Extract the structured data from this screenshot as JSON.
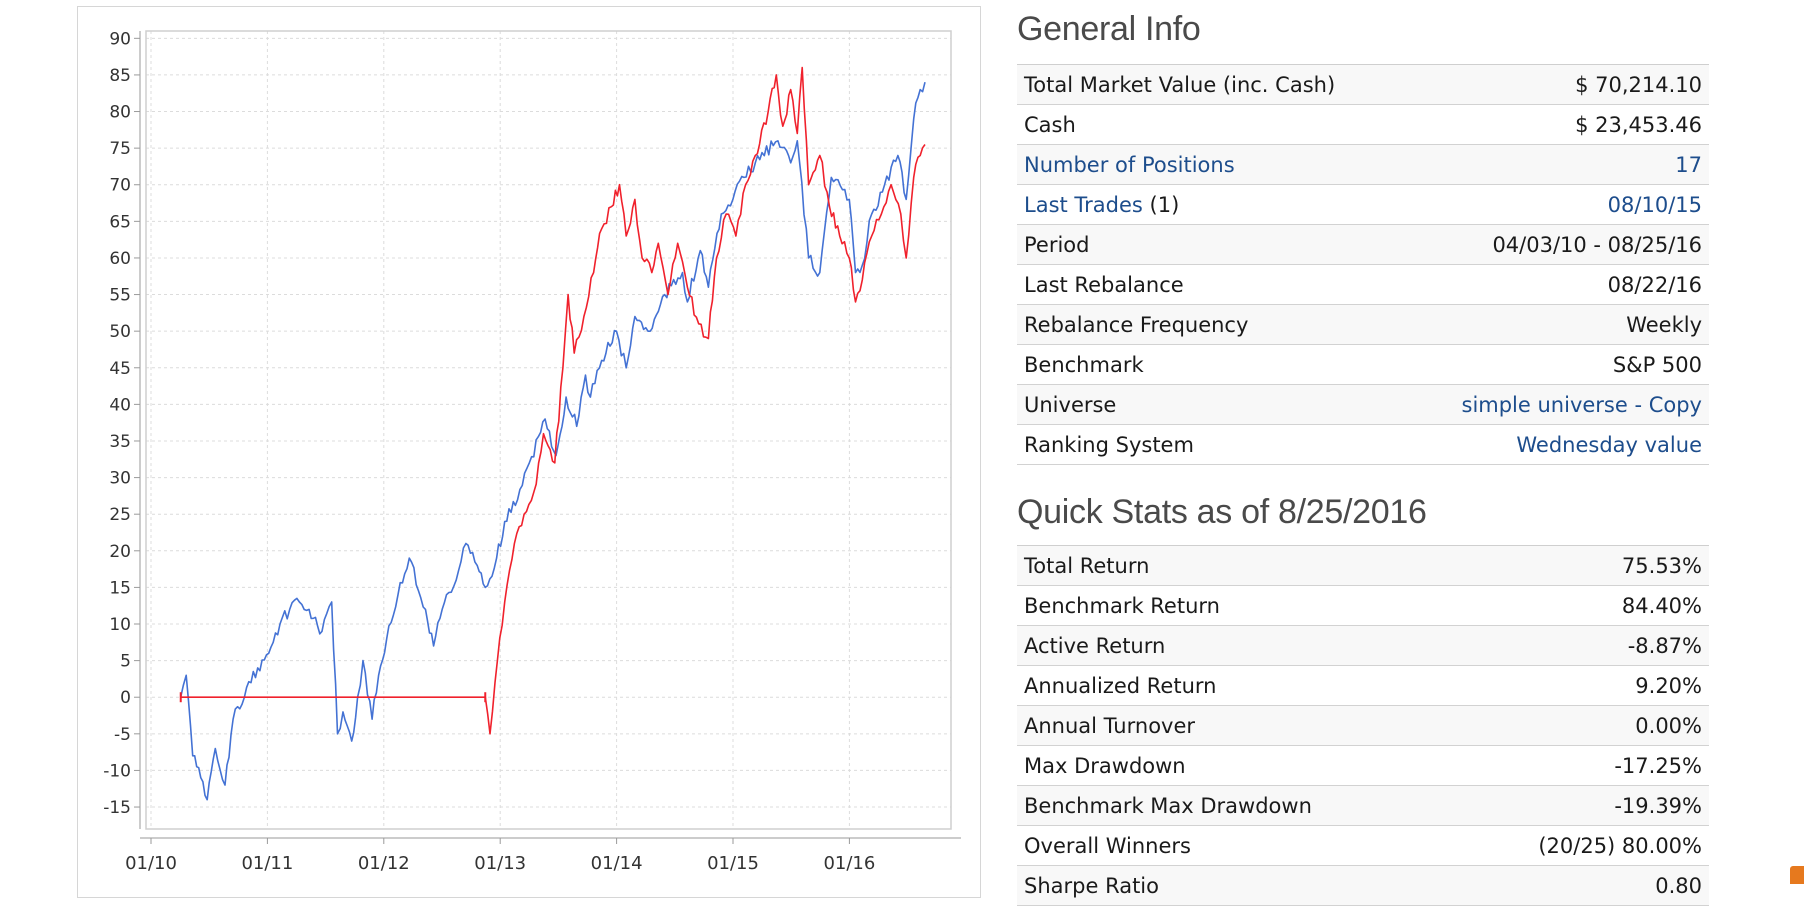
{
  "chart_data": {
    "type": "line",
    "x_ticks": [
      "01/10",
      "01/11",
      "01/12",
      "01/13",
      "01/14",
      "01/15",
      "01/16"
    ],
    "y_ticks": [
      90,
      85,
      80,
      75,
      70,
      65,
      60,
      55,
      50,
      45,
      40,
      35,
      30,
      25,
      20,
      15,
      10,
      5,
      0,
      -5,
      -10,
      -15
    ],
    "ylim": [
      -18,
      91
    ],
    "grid": true,
    "colors": {
      "benchmark": "#4472d4",
      "portfolio": "#f0212c"
    },
    "series": [
      {
        "color": "#4472d4",
        "points": [
          [
            "2010-04-03",
            0
          ],
          [
            "2010-04-20",
            3
          ],
          [
            "2010-05-10",
            -8
          ],
          [
            "2010-06-05",
            -11
          ],
          [
            "2010-06-25",
            -14
          ],
          [
            "2010-07-20",
            -7
          ],
          [
            "2010-08-20",
            -12
          ],
          [
            "2010-09-15",
            -3
          ],
          [
            "2010-10-20",
            0
          ],
          [
            "2010-12-01",
            4
          ],
          [
            "2011-01-05",
            6
          ],
          [
            "2011-02-10",
            10
          ],
          [
            "2011-03-10",
            12
          ],
          [
            "2011-04-10",
            13
          ],
          [
            "2011-05-10",
            12
          ],
          [
            "2011-06-20",
            9
          ],
          [
            "2011-07-20",
            13
          ],
          [
            "2011-08-08",
            -5
          ],
          [
            "2011-08-25",
            -2
          ],
          [
            "2011-09-22",
            -6
          ],
          [
            "2011-10-10",
            0
          ],
          [
            "2011-10-27",
            5
          ],
          [
            "2011-11-25",
            -3
          ],
          [
            "2011-12-15",
            3
          ],
          [
            "2012-01-10",
            8
          ],
          [
            "2012-02-15",
            14
          ],
          [
            "2012-03-20",
            19
          ],
          [
            "2012-05-10",
            12
          ],
          [
            "2012-06-05",
            7
          ],
          [
            "2012-07-15",
            14
          ],
          [
            "2012-08-15",
            16
          ],
          [
            "2012-09-15",
            21
          ],
          [
            "2012-10-20",
            18
          ],
          [
            "2012-11-15",
            15
          ],
          [
            "2012-12-20",
            19
          ],
          [
            "2013-01-15",
            24
          ],
          [
            "2013-02-25",
            27
          ],
          [
            "2013-04-01",
            32
          ],
          [
            "2013-05-20",
            38
          ],
          [
            "2013-06-24",
            33
          ],
          [
            "2013-07-25",
            41
          ],
          [
            "2013-08-28",
            37
          ],
          [
            "2013-09-25",
            44
          ],
          [
            "2013-10-10",
            41
          ],
          [
            "2013-11-15",
            46
          ],
          [
            "2013-12-31",
            50
          ],
          [
            "2014-01-31",
            45
          ],
          [
            "2014-02-28",
            52
          ],
          [
            "2014-04-15",
            50
          ],
          [
            "2014-05-30",
            55
          ],
          [
            "2014-07-25",
            58
          ],
          [
            "2014-08-10",
            54
          ],
          [
            "2014-09-20",
            61
          ],
          [
            "2014-10-15",
            56
          ],
          [
            "2014-11-25",
            66
          ],
          [
            "2014-12-31",
            68
          ],
          [
            "2015-02-05",
            71
          ],
          [
            "2015-03-10",
            73
          ],
          [
            "2015-05-20",
            76
          ],
          [
            "2015-06-30",
            73
          ],
          [
            "2015-07-20",
            76
          ],
          [
            "2015-08-25",
            60
          ],
          [
            "2015-09-30",
            58
          ],
          [
            "2015-11-05",
            71
          ],
          [
            "2015-12-31",
            68
          ],
          [
            "2016-01-20",
            58
          ],
          [
            "2016-02-11",
            59
          ],
          [
            "2016-03-10",
            66
          ],
          [
            "2016-04-20",
            70
          ],
          [
            "2016-06-01",
            74
          ],
          [
            "2016-06-27",
            68
          ],
          [
            "2016-07-20",
            79
          ],
          [
            "2016-08-10",
            83
          ],
          [
            "2016-08-25",
            84
          ]
        ]
      },
      {
        "color": "#f0212c",
        "points": [
          [
            "2010-04-03",
            0
          ],
          [
            "2012-11-15",
            0
          ],
          [
            "2012-11-30",
            -5
          ],
          [
            "2012-12-15",
            2
          ],
          [
            "2013-01-15",
            13
          ],
          [
            "2013-02-15",
            21
          ],
          [
            "2013-03-15",
            25
          ],
          [
            "2013-04-15",
            28
          ],
          [
            "2013-05-15",
            36
          ],
          [
            "2013-06-20",
            32
          ],
          [
            "2013-07-15",
            45
          ],
          [
            "2013-08-01",
            55
          ],
          [
            "2013-08-20",
            47
          ],
          [
            "2013-09-20",
            52
          ],
          [
            "2013-10-20",
            58
          ],
          [
            "2013-11-15",
            64
          ],
          [
            "2013-12-15",
            67
          ],
          [
            "2014-01-10",
            70
          ],
          [
            "2014-01-31",
            63
          ],
          [
            "2014-02-28",
            68
          ],
          [
            "2014-03-20",
            60
          ],
          [
            "2014-04-20",
            58
          ],
          [
            "2014-05-10",
            62
          ],
          [
            "2014-06-10",
            55
          ],
          [
            "2014-07-10",
            62
          ],
          [
            "2014-08-10",
            56
          ],
          [
            "2014-09-15",
            51
          ],
          [
            "2014-10-15",
            49
          ],
          [
            "2014-11-10",
            60
          ],
          [
            "2014-12-10",
            66
          ],
          [
            "2015-01-10",
            63
          ],
          [
            "2015-02-10",
            70
          ],
          [
            "2015-03-10",
            74
          ],
          [
            "2015-04-20",
            80
          ],
          [
            "2015-05-15",
            85
          ],
          [
            "2015-06-05",
            78
          ],
          [
            "2015-06-30",
            83
          ],
          [
            "2015-07-20",
            77
          ],
          [
            "2015-08-05",
            86
          ],
          [
            "2015-08-25",
            70
          ],
          [
            "2015-09-30",
            74
          ],
          [
            "2015-10-30",
            67
          ],
          [
            "2015-12-01",
            63
          ],
          [
            "2015-12-31",
            60
          ],
          [
            "2016-01-20",
            54
          ],
          [
            "2016-02-11",
            57
          ],
          [
            "2016-03-10",
            63
          ],
          [
            "2016-04-10",
            66
          ],
          [
            "2016-05-10",
            70
          ],
          [
            "2016-06-10",
            66
          ],
          [
            "2016-06-27",
            60
          ],
          [
            "2016-07-20",
            71
          ],
          [
            "2016-08-10",
            74
          ],
          [
            "2016-08-25",
            75.5
          ]
        ]
      }
    ]
  },
  "general_info": {
    "title": "General Info",
    "rows": [
      {
        "label": "Total Market Value (inc. Cash)",
        "value": "$ 70,214.10"
      },
      {
        "label": "Cash",
        "value": "$ 23,453.46"
      },
      {
        "label": "Number of Positions",
        "value": "17"
      },
      {
        "label": "Last Trades",
        "label_suffix": " (1)",
        "value": "08/10/15"
      },
      {
        "label": "Period",
        "value": "04/03/10 - 08/25/16"
      },
      {
        "label": "Last Rebalance",
        "value": "08/22/16"
      },
      {
        "label": "Rebalance Frequency",
        "value": "Weekly"
      },
      {
        "label": "Benchmark",
        "value": "S&P 500"
      },
      {
        "label": "Universe",
        "value": "simple universe - Copy"
      },
      {
        "label": "Ranking System",
        "value": "Wednesday value"
      }
    ]
  },
  "quick_stats": {
    "title": "Quick Stats as of 8/25/2016",
    "rows": [
      {
        "label": "Total Return",
        "value": "75.53%"
      },
      {
        "label": "Benchmark Return",
        "value": "84.40%"
      },
      {
        "label": "Active Return",
        "value": "-8.87%"
      },
      {
        "label": "Annualized Return",
        "value": "9.20%"
      },
      {
        "label": "Annual Turnover",
        "value": "0.00%"
      },
      {
        "label": "Max Drawdown",
        "value": "-17.25%"
      },
      {
        "label": "Benchmark Max Drawdown",
        "value": "-19.39%"
      },
      {
        "label": "Overall Winners",
        "value": "(20/25) 80.00%"
      },
      {
        "label": "Sharpe Ratio",
        "value": "0.80"
      }
    ]
  }
}
